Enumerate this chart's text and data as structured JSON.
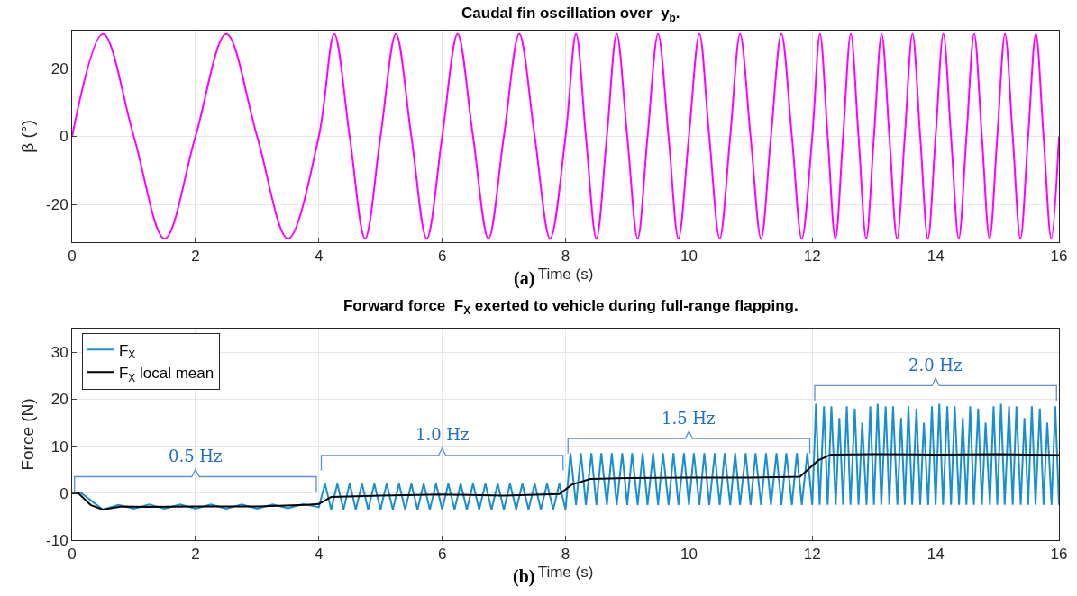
{
  "chart_data": [
    {
      "type": "line",
      "title": "Caudal fin oscillation over  y$_{b}$.",
      "xlabel": "Time (s)",
      "ylabel": "β (°)",
      "annotations": [
        "(a)"
      ],
      "xlim": [
        0,
        16
      ],
      "xticks": [
        0,
        2,
        4,
        6,
        8,
        10,
        12,
        14,
        16
      ],
      "ylim": [
        -31,
        31
      ],
      "yticks": [
        -20,
        0,
        20
      ],
      "grid": true,
      "legend": false,
      "line_style": "solid",
      "marker": "none",
      "series": [
        {
          "color": "#ff00ff",
          "x": [
            0,
            0.5,
            1,
            1.5,
            2,
            2.5,
            3,
            3.5,
            4,
            4.25,
            4.5,
            4.75,
            5,
            5.25,
            5.5,
            5.75,
            6,
            6.25,
            6.5,
            6.75,
            7,
            7.25,
            7.5,
            7.75,
            8,
            8.17,
            8.33,
            8.5,
            8.67,
            8.83,
            9,
            9.17,
            9.33,
            9.5,
            9.67,
            9.83,
            10,
            10.17,
            10.33,
            10.5,
            10.67,
            10.83,
            11,
            11.17,
            11.33,
            11.5,
            11.67,
            11.83,
            12,
            12.125,
            12.25,
            12.375,
            12.5,
            12.625,
            12.75,
            12.875,
            13,
            13.125,
            13.25,
            13.375,
            13.5,
            13.625,
            13.75,
            13.875,
            14,
            14.125,
            14.25,
            14.375,
            14.5,
            14.625,
            14.75,
            14.875,
            15,
            15.125,
            15.25,
            15.375,
            15.5,
            15.625,
            15.75,
            15.875,
            16
          ],
          "values": [
            0,
            30,
            0,
            -30,
            0,
            30,
            0,
            -30,
            0,
            30,
            0,
            -30,
            0,
            30,
            0,
            -30,
            0,
            30,
            0,
            -30,
            0,
            30,
            0,
            -30,
            0,
            30,
            0,
            -30,
            0,
            30,
            0,
            -30,
            0,
            30,
            0,
            -30,
            0,
            30,
            0,
            -30,
            0,
            30,
            0,
            -30,
            0,
            30,
            0,
            -30,
            0,
            30,
            0,
            -30,
            0,
            30,
            0,
            -30,
            0,
            30,
            0,
            -30,
            0,
            30,
            0,
            -30,
            0,
            30,
            0,
            -30,
            0,
            30,
            0,
            -30,
            0,
            30,
            0,
            -30,
            0,
            30,
            0,
            -30,
            0
          ]
        }
      ]
    },
    {
      "type": "line",
      "title": "Forward force  F$_{X}$ exerted to vehicle during full-range flapping.",
      "xlabel": "Time (s)",
      "ylabel": "Force (N)",
      "xlim": [
        0,
        16
      ],
      "xticks": [
        0,
        2,
        4,
        6,
        8,
        10,
        12,
        14,
        16
      ],
      "ylim": [
        -10,
        35
      ],
      "yticks": [
        -10,
        0,
        10,
        20,
        30
      ],
      "grid": true,
      "legend": "top left",
      "line_style": "solid",
      "marker": "none",
      "annotations": [
        "(b)",
        "0.5 Hz",
        "1.0 Hz",
        "1.5 Hz",
        "2.0 Hz"
      ],
      "series": [
        {
          "name": "F$_{X}$",
          "color": "#1a8fce",
          "x": [
            0,
            0.15,
            0.5,
            0.75,
            1,
            1.25,
            1.5,
            1.75,
            2,
            2.25,
            2.5,
            2.75,
            3,
            3.25,
            3.5,
            3.75,
            4,
            4.1,
            4.2,
            4.3,
            4.4,
            4.5,
            4.6,
            4.7,
            4.8,
            4.9,
            5,
            5.1,
            5.2,
            5.3,
            5.4,
            5.5,
            5.6,
            5.7,
            5.8,
            5.9,
            6,
            6.1,
            6.2,
            6.3,
            6.4,
            6.5,
            6.6,
            6.7,
            6.8,
            6.9,
            7,
            7.1,
            7.2,
            7.3,
            7.4,
            7.5,
            7.6,
            7.7,
            7.8,
            7.9,
            8,
            8.08,
            8.17,
            8.25,
            8.33,
            8.42,
            8.5,
            8.58,
            8.67,
            8.75,
            8.83,
            8.92,
            9,
            9.08,
            9.17,
            9.25,
            9.33,
            9.42,
            9.5,
            9.58,
            9.67,
            9.75,
            9.83,
            9.92,
            10,
            10.08,
            10.17,
            10.25,
            10.33,
            10.42,
            10.5,
            10.58,
            10.67,
            10.75,
            10.83,
            10.92,
            11,
            11.08,
            11.17,
            11.25,
            11.33,
            11.42,
            11.5,
            11.58,
            11.67,
            11.75,
            11.83,
            11.92,
            12,
            12.06,
            12.12,
            12.19,
            12.25,
            12.31,
            12.38,
            12.44,
            12.5,
            12.56,
            12.62,
            12.69,
            12.75,
            12.81,
            12.88,
            12.94,
            13,
            13.06,
            13.12,
            13.19,
            13.25,
            13.31,
            13.38,
            13.44,
            13.5,
            13.56,
            13.62,
            13.69,
            13.75,
            13.81,
            13.88,
            13.94,
            14,
            14.06,
            14.12,
            14.19,
            14.25,
            14.31,
            14.38,
            14.44,
            14.5,
            14.56,
            14.62,
            14.69,
            14.75,
            14.81,
            14.88,
            14.94,
            15,
            15.06,
            15.12,
            15.19,
            15.25,
            15.31,
            15.38,
            15.44,
            15.5,
            15.56,
            15.62,
            15.69,
            15.75,
            15.81,
            15.88,
            15.94,
            16
          ],
          "values": [
            0,
            0,
            -3.5,
            -2.5,
            -3.3,
            -2.4,
            -3.3,
            -2.4,
            -3.3,
            -2.4,
            -3.3,
            -2.4,
            -3.3,
            -2.4,
            -3.2,
            -2.3,
            -3,
            2,
            -3.5,
            2,
            -3.5,
            2,
            -3.5,
            2,
            -3.5,
            2,
            -3.5,
            2,
            -3.5,
            2,
            -3.5,
            2,
            -3.5,
            2,
            -3.5,
            2,
            -3.5,
            2,
            -3.5,
            2,
            -3.5,
            2,
            -3.5,
            2,
            -3.5,
            2,
            -3.5,
            2,
            -3.5,
            2,
            -3.5,
            2,
            -3.5,
            2,
            -3.5,
            2,
            -3.5,
            8.5,
            -2.5,
            8.5,
            -2.5,
            8.5,
            -2.5,
            8.5,
            -2.5,
            8.5,
            -2.5,
            8.5,
            -2.5,
            8.5,
            -2.5,
            8.5,
            -2.5,
            8.5,
            -2.5,
            8.5,
            -2.5,
            8.5,
            -2.5,
            8.5,
            -2.5,
            8.5,
            -2.5,
            8.5,
            -2.5,
            8.5,
            -2.5,
            8.5,
            -2.5,
            8.5,
            -2.5,
            8.5,
            -2.5,
            8.5,
            -2.5,
            8.5,
            -2.5,
            8.5,
            -2.5,
            8.5,
            -2.5,
            8.5,
            -2.5,
            8.5,
            -2.5,
            19,
            -2.5,
            18.5,
            -2.5,
            18.5,
            -2.5,
            16,
            -2.5,
            18.5,
            -2.5,
            18,
            -2.5,
            15,
            -2.5,
            18.5,
            -2.5,
            19,
            -2.5,
            18.5,
            -2.5,
            18.5,
            -2.5,
            16,
            -2.5,
            18.5,
            -2.5,
            18,
            -2.5,
            15,
            -2.5,
            18.5,
            -2.5,
            19,
            -2.5,
            18.5,
            -2.5,
            18.5,
            -2.5,
            16,
            -2.5,
            18.5,
            -2.5,
            18,
            -2.5,
            15,
            -2.5,
            18.5,
            -2.5,
            19,
            -2.5,
            18.5,
            -2.5,
            18.5,
            -2.5,
            16,
            -2.5,
            18.5,
            -2.5,
            18,
            -2.5,
            15,
            -2.5,
            18.5,
            -2.5
          ]
        },
        {
          "name": "F$_{X}$ local mean",
          "color": "#000000",
          "x": [
            0,
            0.1,
            0.3,
            0.5,
            0.8,
            1.2,
            2,
            3,
            3.8,
            4,
            4.2,
            5,
            6,
            7,
            7.9,
            8.1,
            8.4,
            9,
            10,
            11,
            11.8,
            12.1,
            12.3,
            13,
            14,
            15,
            16
          ],
          "values": [
            0,
            0,
            -2.5,
            -3.5,
            -2.8,
            -2.9,
            -2.8,
            -2.8,
            -2.5,
            -2.3,
            -0.8,
            -0.5,
            -0.3,
            -0.5,
            -0.2,
            1.8,
            3,
            3.2,
            3.3,
            3.3,
            3.5,
            7,
            8.2,
            8.3,
            8.2,
            8.3,
            8.1
          ]
        }
      ]
    }
  ]
}
